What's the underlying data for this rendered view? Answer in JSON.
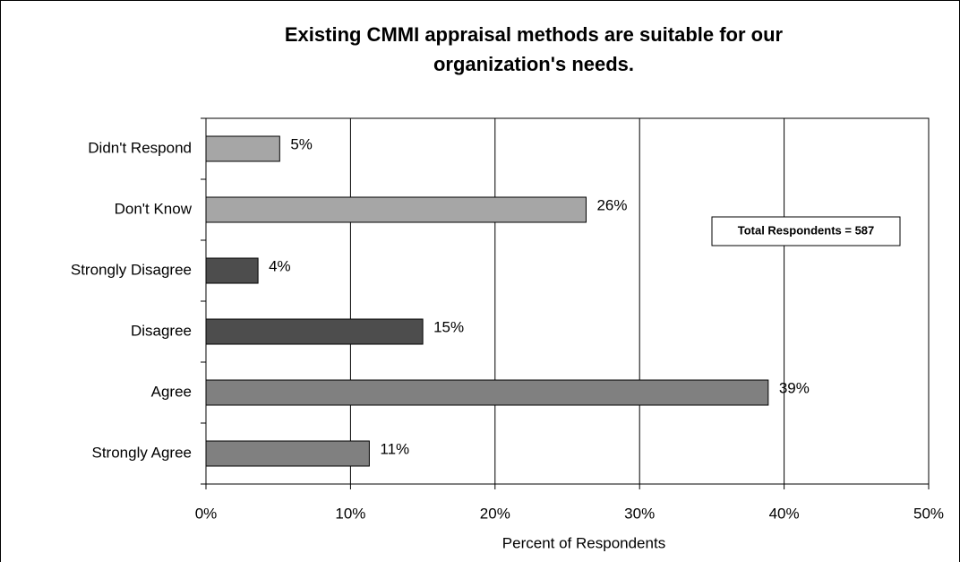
{
  "chart_data": {
    "type": "barh",
    "title": [
      "Existing CMMI appraisal methods are suitable for our",
      "organization's needs."
    ],
    "categories": [
      "Didn't Respond",
      "Don't Know",
      "Strongly Disagree",
      "Disagree",
      "Agree",
      "Strongly Agree"
    ],
    "values": [
      5.1,
      26.3,
      3.6,
      15.0,
      38.9,
      11.3
    ],
    "value_labels": [
      "5%",
      "26%",
      "4%",
      "15%",
      "39%",
      "11%"
    ],
    "colors": [
      "#a6a6a6",
      "#a6a6a6",
      "#4d4d4d",
      "#4d4d4d",
      "#808080",
      "#808080"
    ],
    "xlim": [
      0,
      50
    ],
    "xticks": [
      {
        "value": 0,
        "label": "0%"
      },
      {
        "value": 10,
        "label": "10%"
      },
      {
        "value": 20,
        "label": "20%"
      },
      {
        "value": 30,
        "label": "30%"
      },
      {
        "value": 40,
        "label": "40%"
      },
      {
        "value": 50,
        "label": "50%"
      }
    ],
    "xlabel": "Percent of Respondents",
    "annotation": "Total Respondents = 587",
    "grid": true
  }
}
